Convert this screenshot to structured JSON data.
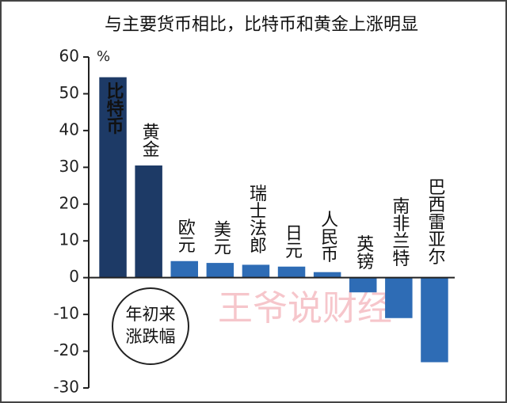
{
  "chart_data": {
    "type": "bar",
    "title": "与主要货币相比，比特币和黄金上涨明显",
    "unit": "%",
    "categories": [
      "比特币",
      "黄金",
      "欧元",
      "美元",
      "瑞士法郎",
      "日元",
      "人民币",
      "英镑",
      "南非兰特",
      "巴西雷亚尔"
    ],
    "values": [
      54.5,
      30.5,
      4.5,
      4,
      3.5,
      3,
      1.5,
      -4,
      -11,
      -23
    ],
    "colors": [
      "#1d3a66",
      "#1d3a66",
      "#2e6cb5",
      "#2e6cb5",
      "#2e6cb5",
      "#2e6cb5",
      "#2e6cb5",
      "#2e6cb5",
      "#2e6cb5",
      "#2e6cb5"
    ],
    "ylim": [
      -30,
      60
    ],
    "yticks": [
      -30,
      -20,
      -10,
      0,
      10,
      20,
      30,
      40,
      50,
      60
    ],
    "annotation": [
      "年初来",
      "涨跌幅"
    ],
    "watermark": "王爷说财经"
  }
}
